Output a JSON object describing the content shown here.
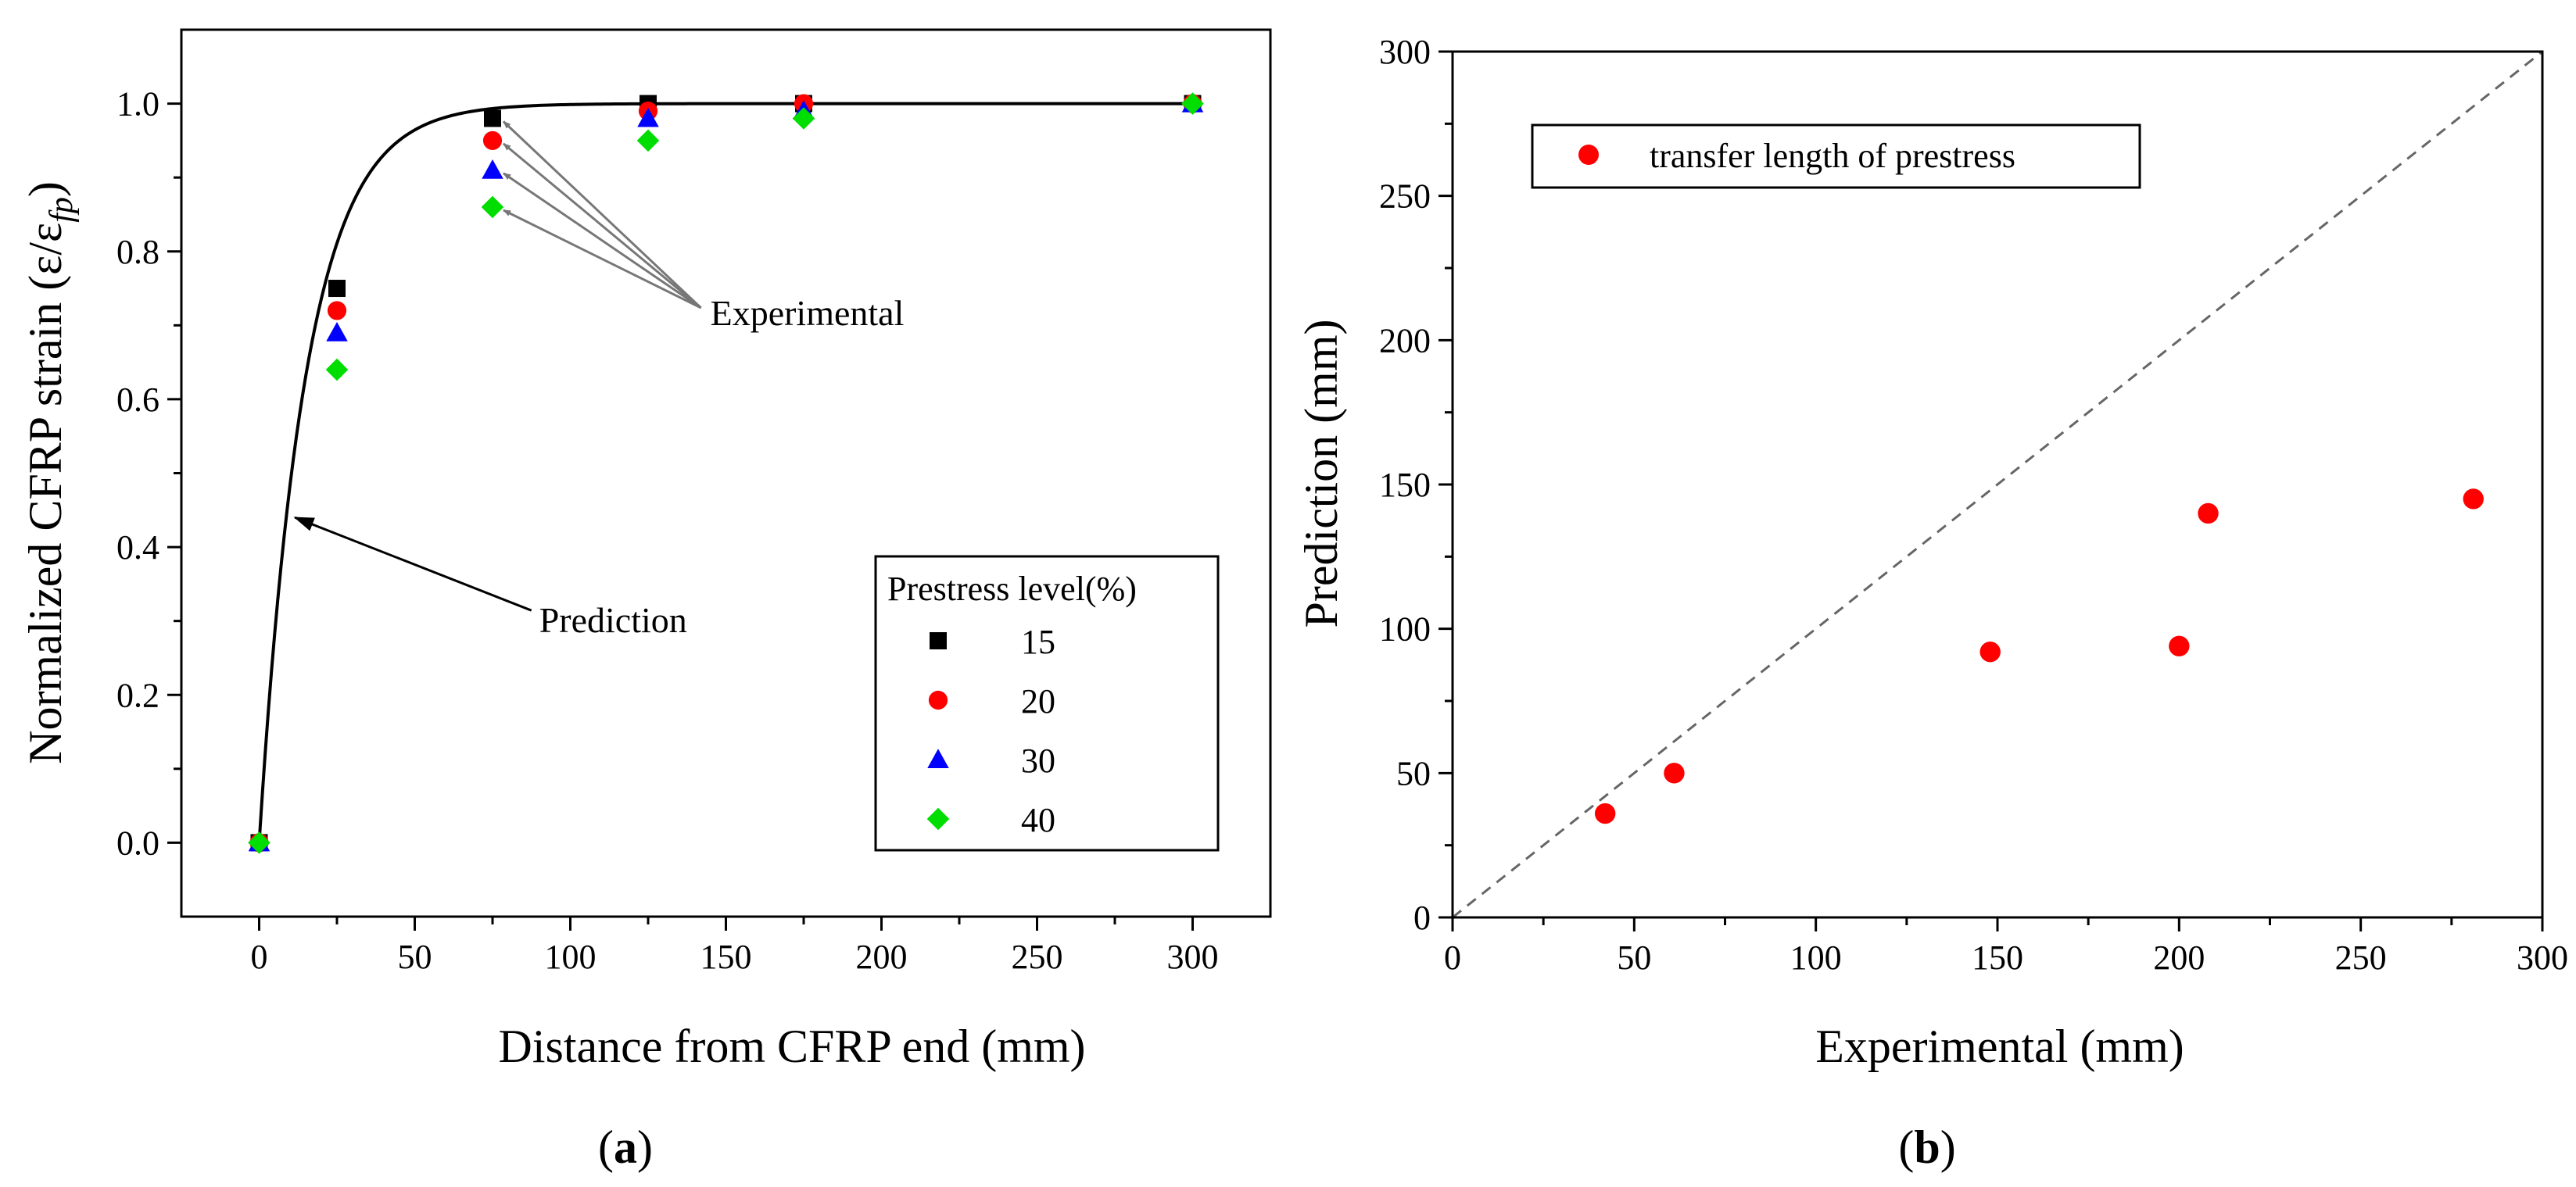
{
  "chart_data": [
    {
      "id": "a",
      "type": "scatter",
      "panel_label_open": "(",
      "panel_label": "a",
      "panel_label_close": ")",
      "xlabel": "Distance from CFRP end (mm)",
      "ylabel": "Normalized CFRP strain (ε/ε",
      "ylabel_sub": "fp",
      "ylabel_close": ")",
      "xlim": [
        -25,
        325
      ],
      "ylim": [
        -0.1,
        1.1
      ],
      "xticks": [
        0,
        50,
        100,
        150,
        200,
        250,
        300
      ],
      "yticks": [
        0.0,
        0.2,
        0.4,
        0.6,
        0.8,
        1.0
      ],
      "ytick_labels": [
        "0.0",
        "0.2",
        "0.4",
        "0.6",
        "0.8",
        "1.0"
      ],
      "legend_title": "Prestress level(%)",
      "legend_position": "bottom-right",
      "series": [
        {
          "name": "15",
          "marker": "square",
          "color": "#000000",
          "x": [
            0,
            25,
            75,
            125,
            175,
            300
          ],
          "y": [
            0.0,
            0.75,
            0.98,
            1.0,
            1.0,
            1.0
          ]
        },
        {
          "name": "20",
          "marker": "circle",
          "color": "#ff0000",
          "x": [
            0,
            25,
            75,
            125,
            175,
            300
          ],
          "y": [
            0.0,
            0.72,
            0.95,
            0.99,
            1.0,
            1.0
          ]
        },
        {
          "name": "30",
          "marker": "triangle",
          "color": "#0000ff",
          "x": [
            0,
            25,
            75,
            125,
            175,
            300
          ],
          "y": [
            0.0,
            0.69,
            0.91,
            0.98,
            0.99,
            1.0
          ]
        },
        {
          "name": "40",
          "marker": "diamond",
          "color": "#00dd00",
          "x": [
            0,
            25,
            75,
            125,
            175,
            300
          ],
          "y": [
            0.0,
            0.64,
            0.86,
            0.95,
            0.98,
            1.0
          ]
        }
      ],
      "prediction_curve": {
        "name": "Prediction",
        "model": "1 - exp(-x/15)",
        "x_max": 300
      },
      "annotations": {
        "prediction": {
          "text": "Prediction",
          "at": [
            90,
            0.31
          ],
          "points_to": [
            10,
            0.44
          ]
        },
        "experimental": {
          "text": "Experimental",
          "at": [
            145,
            0.73
          ],
          "points_to": [
            [
              75,
              0.98
            ],
            [
              75,
              0.95
            ],
            [
              75,
              0.91
            ],
            [
              75,
              0.86
            ]
          ]
        }
      }
    },
    {
      "id": "b",
      "type": "scatter",
      "panel_label_open": "(",
      "panel_label": "b",
      "panel_label_close": ")",
      "xlabel": "Experimental (mm)",
      "ylabel": "Prediction (mm)",
      "xlim": [
        0,
        300
      ],
      "ylim": [
        0,
        300
      ],
      "xticks": [
        0,
        50,
        100,
        150,
        200,
        250,
        300
      ],
      "yticks": [
        0,
        50,
        100,
        150,
        200,
        250,
        300
      ],
      "legend_position": "top-left",
      "reference_line": "y = x (dashed)",
      "series": [
        {
          "name": "transfer length of prestress",
          "marker": "circle",
          "color": "#ff0000",
          "x": [
            42,
            61,
            148,
            200,
            208,
            281
          ],
          "y": [
            36,
            50,
            92,
            94,
            140,
            145
          ]
        }
      ]
    }
  ]
}
